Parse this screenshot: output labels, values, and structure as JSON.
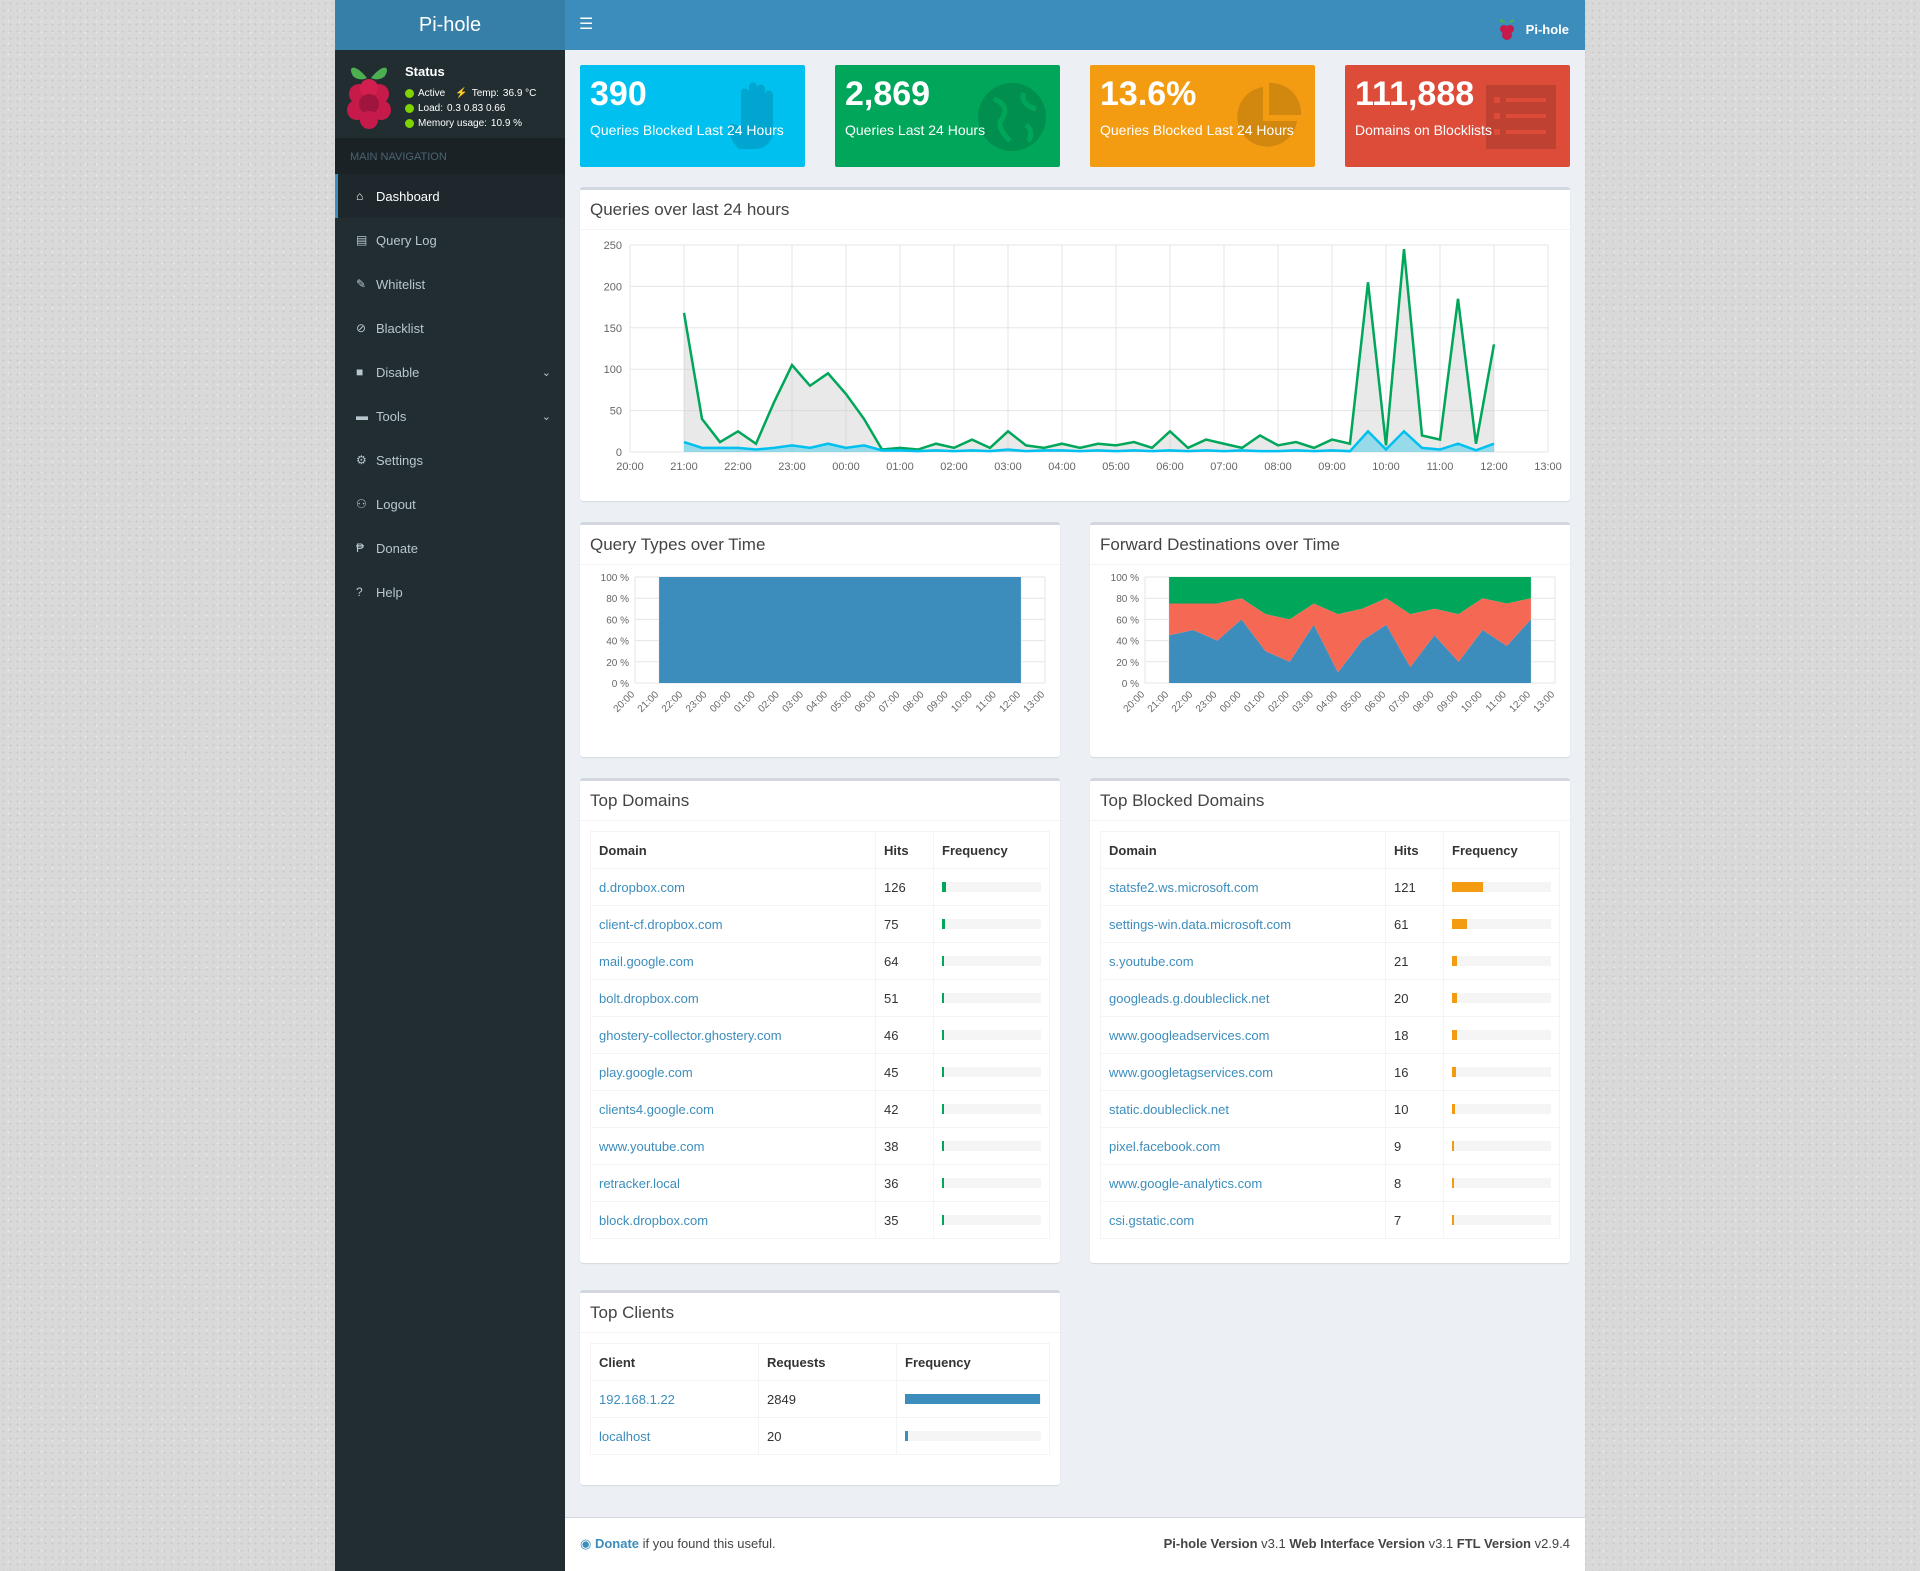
{
  "app": {
    "title": "Pi-hole",
    "user": "Pi-hole"
  },
  "status": {
    "title": "Status",
    "state": "Active",
    "temp_label": "Temp:",
    "temp": "36.9 °C",
    "load_label": "Load:",
    "load": "0.3  0.83  0.66",
    "memory_label": "Memory usage:",
    "memory": "10.9 %"
  },
  "nav": {
    "header": "MAIN NAVIGATION",
    "items": [
      {
        "label": "Dashboard"
      },
      {
        "label": "Query Log"
      },
      {
        "label": "Whitelist"
      },
      {
        "label": "Blacklist"
      },
      {
        "label": "Disable"
      },
      {
        "label": "Tools"
      },
      {
        "label": "Settings"
      },
      {
        "label": "Logout"
      },
      {
        "label": "Donate"
      },
      {
        "label": "Help"
      }
    ]
  },
  "stats": [
    {
      "value": "390",
      "label": "Queries Blocked Last 24 Hours",
      "color": "#00c0ef"
    },
    {
      "value": "2,869",
      "label": "Queries Last 24 Hours",
      "color": "#00a65a"
    },
    {
      "value": "13.6%",
      "label": "Queries Blocked Last 24 Hours",
      "color": "#f39c12"
    },
    {
      "value": "111,888",
      "label": "Domains on Blocklists",
      "color": "#dd4b39"
    }
  ],
  "queries_chart": {
    "title": "Queries over last 24 hours"
  },
  "query_types": {
    "title": "Query Types over Time"
  },
  "forward_dest": {
    "title": "Forward Destinations over Time"
  },
  "chart_data": [
    {
      "type": "area",
      "title": "Queries over last 24 hours",
      "x": [
        "20:00",
        "20:20",
        "20:40",
        "21:00",
        "21:20",
        "21:40",
        "22:00",
        "22:20",
        "22:40",
        "23:00",
        "23:20",
        "23:40",
        "00:00",
        "00:20",
        "00:40",
        "01:00",
        "01:20",
        "01:40",
        "02:00",
        "02:20",
        "02:40",
        "03:00",
        "03:20",
        "03:40",
        "04:00",
        "04:20",
        "04:40",
        "05:00",
        "05:20",
        "05:40",
        "06:00",
        "06:20",
        "06:40",
        "07:00",
        "07:20",
        "07:40",
        "08:00",
        "08:20",
        "08:40",
        "09:00",
        "09:20",
        "09:40",
        "10:00",
        "10:20",
        "10:40",
        "11:00",
        "11:20",
        "11:40",
        "12:00",
        "12:10"
      ],
      "ylim": [
        0,
        250
      ],
      "xticks": [
        "20:00",
        "21:00",
        "22:00",
        "23:00",
        "00:00",
        "01:00",
        "02:00",
        "03:00",
        "04:00",
        "05:00",
        "06:00",
        "07:00",
        "08:00",
        "09:00",
        "10:00",
        "11:00",
        "12:00",
        "13:00"
      ],
      "yticks": [
        "0",
        "50",
        "100",
        "150",
        "200",
        "250"
      ],
      "series": [
        {
          "values": [
            null,
            null,
            null,
            168,
            40,
            12,
            25,
            10,
            60,
            105,
            80,
            95,
            70,
            40,
            3,
            5,
            3,
            10,
            5,
            15,
            5,
            25,
            8,
            5,
            10,
            5,
            10,
            8,
            12,
            5,
            25,
            5,
            15,
            10,
            5,
            20,
            8,
            12,
            5,
            15,
            10,
            205,
            8,
            245,
            20,
            15,
            185,
            10,
            130,
            null
          ]
        },
        {
          "values": [
            null,
            null,
            null,
            12,
            5,
            5,
            5,
            3,
            5,
            8,
            5,
            10,
            5,
            8,
            2,
            2,
            1,
            2,
            1,
            2,
            1,
            3,
            1,
            2,
            2,
            1,
            2,
            1,
            2,
            1,
            2,
            1,
            2,
            1,
            2,
            1,
            1,
            2,
            1,
            2,
            1,
            25,
            3,
            25,
            5,
            3,
            10,
            2,
            10,
            null
          ]
        }
      ]
    },
    {
      "type": "bar",
      "title": "Query Types over Time",
      "categories": [
        "20:00",
        "21:00",
        "22:00",
        "23:00",
        "00:00",
        "01:00",
        "02:00",
        "03:00",
        "04:00",
        "05:00",
        "06:00",
        "07:00",
        "08:00",
        "09:00",
        "10:00",
        "11:00",
        "12:00",
        "13:00"
      ],
      "ylim": [
        0,
        100
      ],
      "yticks": [
        "0 %",
        "20 %",
        "40 %",
        "60 %",
        "80 %",
        "100 %"
      ],
      "series": [
        {
          "values": [
            null,
            100,
            100,
            100,
            100,
            100,
            100,
            100,
            100,
            100,
            100,
            100,
            100,
            100,
            100,
            100,
            100,
            null
          ]
        }
      ]
    },
    {
      "type": "area",
      "title": "Forward Destinations over Time",
      "categories": [
        "20:00",
        "21:00",
        "22:00",
        "23:00",
        "00:00",
        "01:00",
        "02:00",
        "03:00",
        "04:00",
        "05:00",
        "06:00",
        "07:00",
        "08:00",
        "09:00",
        "10:00",
        "11:00",
        "12:00",
        "13:00"
      ],
      "ylim": [
        0,
        100
      ],
      "yticks": [
        "0 %",
        "20 %",
        "40 %",
        "60 %",
        "80 %",
        "100 %"
      ],
      "series": [
        {
          "values": [
            null,
            45,
            50,
            40,
            60,
            30,
            20,
            55,
            10,
            40,
            55,
            15,
            45,
            20,
            50,
            35,
            60,
            null
          ]
        },
        {
          "values": [
            null,
            30,
            25,
            35,
            20,
            35,
            40,
            20,
            55,
            30,
            25,
            50,
            25,
            45,
            30,
            40,
            20,
            null
          ]
        },
        {
          "values": [
            null,
            25,
            25,
            25,
            20,
            35,
            40,
            25,
            35,
            30,
            20,
            35,
            30,
            35,
            20,
            25,
            20,
            null
          ]
        }
      ]
    }
  ],
  "top_domains": {
    "title": "Top Domains",
    "headers": [
      "Domain",
      "Hits",
      "Frequency"
    ],
    "rows": [
      {
        "domain": "d.dropbox.com",
        "hits": "126",
        "freq": 0.044
      },
      {
        "domain": "client-cf.dropbox.com",
        "hits": "75",
        "freq": 0.026
      },
      {
        "domain": "mail.google.com",
        "hits": "64",
        "freq": 0.022
      },
      {
        "domain": "bolt.dropbox.com",
        "hits": "51",
        "freq": 0.018
      },
      {
        "domain": "ghostery-collector.ghostery.com",
        "hits": "46",
        "freq": 0.016
      },
      {
        "domain": "play.google.com",
        "hits": "45",
        "freq": 0.016
      },
      {
        "domain": "clients4.google.com",
        "hits": "42",
        "freq": 0.015
      },
      {
        "domain": "www.youtube.com",
        "hits": "38",
        "freq": 0.013
      },
      {
        "domain": "retracker.local",
        "hits": "36",
        "freq": 0.013
      },
      {
        "domain": "block.dropbox.com",
        "hits": "35",
        "freq": 0.012
      }
    ]
  },
  "top_blocked": {
    "title": "Top Blocked Domains",
    "headers": [
      "Domain",
      "Hits",
      "Frequency"
    ],
    "rows": [
      {
        "domain": "statsfe2.ws.microsoft.com",
        "hits": "121",
        "freq": 0.31
      },
      {
        "domain": "settings-win.data.microsoft.com",
        "hits": "61",
        "freq": 0.156
      },
      {
        "domain": "s.youtube.com",
        "hits": "21",
        "freq": 0.054
      },
      {
        "domain": "googleads.g.doubleclick.net",
        "hits": "20",
        "freq": 0.051
      },
      {
        "domain": "www.googleadservices.com",
        "hits": "18",
        "freq": 0.046
      },
      {
        "domain": "www.googletagservices.com",
        "hits": "16",
        "freq": 0.041
      },
      {
        "domain": "static.doubleclick.net",
        "hits": "10",
        "freq": 0.026
      },
      {
        "domain": "pixel.facebook.com",
        "hits": "9",
        "freq": 0.023
      },
      {
        "domain": "www.google-analytics.com",
        "hits": "8",
        "freq": 0.021
      },
      {
        "domain": "csi.gstatic.com",
        "hits": "7",
        "freq": 0.018
      }
    ]
  },
  "top_clients": {
    "title": "Top Clients",
    "headers": [
      "Client",
      "Requests",
      "Frequency"
    ],
    "rows": [
      {
        "client": "192.168.1.22",
        "requests": "2849",
        "freq": 0.993
      },
      {
        "client": "localhost",
        "requests": "20",
        "freq": 0.007
      }
    ]
  },
  "colors": {
    "green": "#00a65a",
    "blue": "#3c8dbc",
    "cyan": "#00c0ef",
    "orange": "#f39c12",
    "red": "#dd4b39"
  },
  "footer": {
    "donate_link": "Donate",
    "donate_text": " if you found this useful.",
    "pihole_label": "Pi-hole Version",
    "pihole_version": "v3.1",
    "web_label": "Web Interface Version",
    "web_version": "v3.1",
    "ftl_label": "FTL Version",
    "ftl_version": "v2.9.4"
  }
}
